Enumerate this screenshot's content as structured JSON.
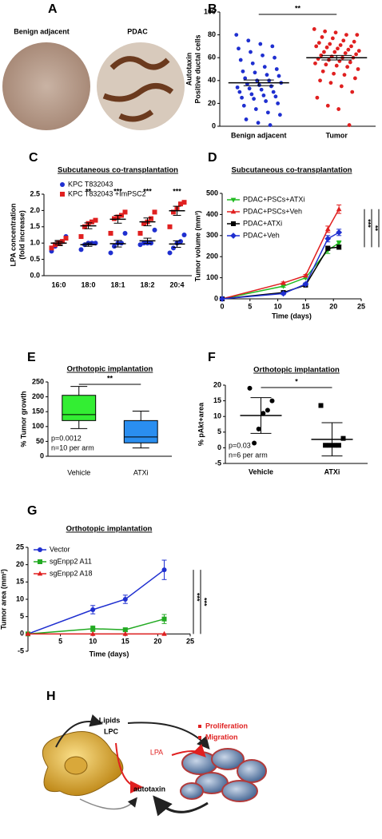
{
  "figure": {
    "panel_letters": [
      "A",
      "B",
      "C",
      "D",
      "E",
      "F",
      "G",
      "H"
    ],
    "panel_a": {
      "labels": [
        "Benign adjacent",
        "PDAC"
      ]
    },
    "panel_h": {
      "labels": [
        "Lipids",
        "LPC",
        "Proliferation",
        "Migration",
        "LPA",
        "autotaxin"
      ]
    }
  },
  "chart_data": [
    {
      "type": "strip",
      "categories": [
        "Benign adjacent",
        "Tumor"
      ],
      "ylabel": [
        "Autotaxin",
        "Positive ductal cells"
      ],
      "ylim": [
        0,
        100
      ],
      "yticks": [
        0,
        20,
        40,
        60,
        80,
        100
      ],
      "series": [
        {
          "color": [
            "#1f2fd0",
            "#e02020"
          ],
          "marker": "circle",
          "values": [
            [
              80,
              75,
              72,
              70,
              68,
              65,
              62,
              60,
              58,
              55,
              52,
              50,
              48,
              47,
              45,
              44,
              42,
              40,
              40,
              38,
              37,
              36,
              35,
              34,
              33,
              32,
              30,
              30,
              28,
              27,
              26,
              25,
              24,
              22,
              20,
              18,
              15,
              12,
              10,
              6,
              3,
              1
            ],
            [
              85,
              83,
              82,
              80,
              80,
              78,
              77,
              75,
              74,
              73,
              72,
              71,
              70,
              70,
              69,
              68,
              67,
              66,
              65,
              65,
              64,
              63,
              62,
              61,
              60,
              60,
              59,
              58,
              57,
              56,
              55,
              54,
              53,
              52,
              50,
              48,
              46,
              45,
              42,
              40,
              38,
              35,
              30,
              25,
              18,
              15,
              1
            ]
          ],
          "means": [
            38,
            60
          ],
          "errors": [
            2.5,
            2
          ]
        }
      ],
      "significance": "**"
    },
    {
      "type": "strip",
      "title": "Subcutaneous co-transplantation",
      "categories": [
        "16:0",
        "18:0",
        "18:1",
        "18:2",
        "20:4"
      ],
      "ylabel": [
        "LPA concentration",
        "(fold increase)"
      ],
      "ylim": [
        0,
        2.5
      ],
      "yticks": [
        {
          "value": 0,
          "label": "0.0"
        },
        0.5,
        {
          "value": 1,
          "label": "1.0"
        },
        1.5,
        {
          "value": 2,
          "label": "2.0"
        },
        2.5
      ],
      "series": [
        {
          "name": "KPC T832043",
          "color": "#1f2fd0",
          "marker": "circle",
          "values": [
            [
              0.75,
              0.9,
              1.0,
              1.05,
              1.2
            ],
            [
              0.8,
              0.95,
              1.0,
              1.0,
              1.0
            ],
            [
              0.7,
              0.9,
              1.0,
              1.0,
              1.3
            ],
            [
              0.95,
              1.0,
              1.0,
              1.0,
              1.4
            ],
            [
              0.7,
              0.85,
              1.0,
              1.05,
              1.25
            ]
          ],
          "means": [
            1.0,
            0.95,
            0.98,
            1.07,
            0.97
          ],
          "errors": [
            0.08,
            0.05,
            0.1,
            0.08,
            0.1
          ]
        },
        {
          "name": "KPC T832043 +ImPSC2",
          "color": "#e02020",
          "marker": "square",
          "values": [
            [
              0.85,
              0.95,
              1.0,
              1.05,
              1.15
            ],
            [
              1.2,
              1.5,
              1.6,
              1.65,
              1.7
            ],
            [
              1.3,
              1.75,
              1.8,
              1.85,
              1.95
            ],
            [
              1.3,
              1.6,
              1.65,
              1.75,
              1.95
            ],
            [
              1.5,
              1.95,
              2.05,
              2.2,
              2.25
            ]
          ],
          "means": [
            1.0,
            1.53,
            1.73,
            1.65,
            1.99
          ],
          "errors": [
            0.05,
            0.09,
            0.12,
            0.12,
            0.14
          ]
        }
      ],
      "significance": [
        null,
        "**",
        "***",
        "***",
        "***"
      ]
    },
    {
      "type": "line",
      "title": "Subcutaneous co-transplantation",
      "xlabel": "Time (days)",
      "ylabel": "Tumor volume (mm³)",
      "xlim": [
        0,
        25
      ],
      "xticks": [
        0,
        5,
        10,
        15,
        20,
        25
      ],
      "ylim": [
        0,
        500
      ],
      "yticks": [
        0,
        100,
        200,
        300,
        400,
        500
      ],
      "x": [
        0,
        11,
        15,
        19,
        21
      ],
      "series": [
        {
          "name": "PDAC+PSCs+ATXi",
          "color": "#22bb22",
          "marker": "triangle-down",
          "values": [
            0,
            60,
            100,
            230,
            265
          ],
          "errors": [
            0,
            5,
            5,
            15,
            10
          ]
        },
        {
          "name": "PDAC+PSCs+Veh",
          "color": "#e02020",
          "marker": "triangle",
          "values": [
            0,
            75,
            110,
            330,
            425
          ],
          "errors": [
            0,
            5,
            5,
            15,
            20
          ]
        },
        {
          "name": "PDAC+ATXi",
          "color": "#000000",
          "marker": "square",
          "values": [
            0,
            30,
            65,
            240,
            245
          ],
          "errors": [
            0,
            5,
            5,
            10,
            10
          ]
        },
        {
          "name": "PDAC+Veh",
          "color": "#1f2fd0",
          "marker": "diamond",
          "values": [
            0,
            25,
            70,
            285,
            315
          ],
          "errors": [
            0,
            5,
            5,
            15,
            15
          ]
        }
      ],
      "significance": [
        "***",
        "**",
        "***"
      ]
    },
    {
      "type": "box",
      "title": "Orthotopic implantation",
      "categories": [
        "Vehicle",
        "ATXi"
      ],
      "ylabel": "% Tumor growth",
      "ylim": [
        0,
        250
      ],
      "yticks": [
        0,
        50,
        100,
        150,
        200,
        250
      ],
      "colors": [
        "#33ee33",
        "#2a8ef0"
      ],
      "stats": [
        [
          93,
          120,
          140,
          205,
          235
        ],
        [
          28,
          45,
          65,
          120,
          152
        ]
      ],
      "significance": "**",
      "notes": [
        "p=0.0012",
        "n=10 per arm"
      ]
    },
    {
      "type": "strip",
      "title": "Orthotopic implantation",
      "categories": [
        "Vehicle",
        "ATXi"
      ],
      "ylabel": "% pAkt+area",
      "ylim": [
        -5,
        20
      ],
      "yticks": [
        -5,
        0,
        5,
        10,
        15,
        20
      ],
      "series": [
        {
          "color": "#000000",
          "marker": [
            "circle",
            "square"
          ],
          "values": [
            [
              19,
              15,
              12,
              11,
              6,
              1.5
            ],
            [
              13.5,
              3,
              0.8,
              0.8,
              0.8,
              0.8
            ]
          ],
          "means": [
            10.3,
            2.7
          ],
          "errors": [
            5.7,
            5.3
          ]
        }
      ],
      "significance": "*",
      "notes": [
        "p=0.03",
        "n=6 per arm"
      ]
    },
    {
      "type": "line",
      "title": "Orthotopic implantation",
      "xlabel": "Time (days)",
      "ylabel": "Tumor area (mm²)",
      "xlim": [
        0,
        25
      ],
      "xticks": [
        5,
        10,
        15,
        20,
        25
      ],
      "ylim": [
        -5,
        25
      ],
      "yticks": [
        -5,
        0,
        5,
        10,
        15,
        20,
        25
      ],
      "x": [
        0,
        10,
        15,
        21
      ],
      "series": [
        {
          "name": "Vector",
          "color": "#1f2fd0",
          "marker": "circle",
          "values": [
            0,
            7,
            10,
            18.5
          ],
          "errors": [
            0,
            1.2,
            1.2,
            2.8
          ]
        },
        {
          "name": "sgEnpp2 A11",
          "color": "#22aa22",
          "marker": "square",
          "values": [
            0,
            1.5,
            1.2,
            4.3
          ],
          "errors": [
            0,
            0.8,
            0.5,
            1.3
          ]
        },
        {
          "name": "sgEnpp2 A18",
          "color": "#e02020",
          "marker": "triangle",
          "values": [
            0,
            0,
            0,
            0
          ],
          "errors": [
            0,
            0,
            0,
            0
          ]
        }
      ],
      "significance": [
        "***",
        "***"
      ]
    }
  ]
}
